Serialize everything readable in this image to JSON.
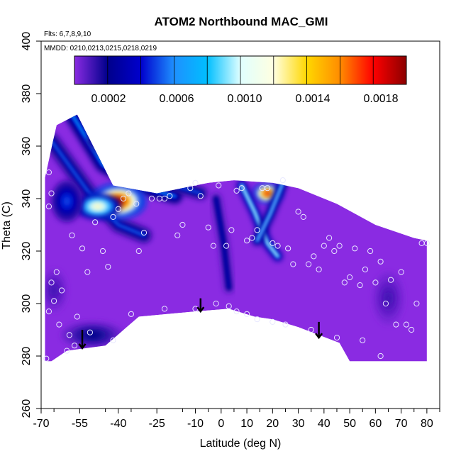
{
  "chart_data": {
    "type": "heatmap",
    "title": "ATOM2 Northbound MAC_GMI",
    "notes": [
      "Flts: 6,7,8,9,10",
      "MMDD: 0210,0213,0215,0218,0219"
    ],
    "xlabel": "Latitude (deg N)",
    "ylabel": "Theta (C)",
    "xlim": [
      -70,
      85
    ],
    "ylim": [
      260,
      400
    ],
    "x_ticks": [
      -70,
      -55,
      -40,
      -25,
      -10,
      0,
      10,
      20,
      30,
      40,
      50,
      60,
      70,
      80
    ],
    "y_ticks": [
      260,
      280,
      300,
      320,
      340,
      360,
      380,
      400
    ],
    "colorbar": {
      "range": [
        0,
        0.00195
      ],
      "tick_values": [
        0.0002,
        0.0006,
        0.001,
        0.0014,
        0.0018
      ],
      "tick_labels": [
        "0.0002",
        "0.0006",
        "0.0010",
        "0.0014",
        "0.0018"
      ],
      "colors": [
        "#8a2be2",
        "#00008b",
        "#0000cd",
        "#1e90ff",
        "#00bfff",
        "#e0ffff",
        "#ffffe0",
        "#ffd700",
        "#ff8c00",
        "#ff0000",
        "#8b0000"
      ]
    },
    "background_color": "#8a2be2",
    "domain_outline": [
      [
        -68.5,
        278
      ],
      [
        -68.5,
        348
      ],
      [
        -64,
        368
      ],
      [
        -56,
        372
      ],
      [
        -42,
        345
      ],
      [
        -25,
        342
      ],
      [
        -5,
        346
      ],
      [
        5,
        347
      ],
      [
        20,
        346
      ],
      [
        30,
        344
      ],
      [
        45,
        338
      ],
      [
        60,
        330
      ],
      [
        75,
        325
      ],
      [
        80,
        324
      ],
      [
        80,
        278
      ],
      [
        50,
        278
      ],
      [
        46,
        285
      ],
      [
        30,
        291
      ],
      [
        20,
        294
      ],
      [
        13,
        295
      ],
      [
        3,
        298
      ],
      [
        -10,
        297
      ],
      [
        -32,
        295
      ],
      [
        -45,
        284
      ],
      [
        -60,
        282
      ],
      [
        -66,
        278
      ],
      [
        -68.5,
        278
      ]
    ],
    "features": [
      {
        "kind": "ridge",
        "points": [
          [
            -66,
            362
          ],
          [
            -52,
            343
          ],
          [
            -40,
            330
          ],
          [
            -30,
            326
          ]
        ],
        "width": 6,
        "peak": 0.0003
      },
      {
        "kind": "ridge",
        "points": [
          [
            -58,
            372
          ],
          [
            -46,
            353
          ],
          [
            -32,
            345
          ],
          [
            -18,
            341
          ]
        ],
        "width": 6,
        "peak": 0.0004
      },
      {
        "kind": "ridge",
        "points": [
          [
            -50,
            362
          ],
          [
            -36,
            351
          ],
          [
            -22,
            346
          ],
          [
            -8,
            342
          ]
        ],
        "width": 5,
        "peak": 0.0003
      },
      {
        "kind": "blob",
        "x": -40,
        "y": 339,
        "rx": 11,
        "ry": 7,
        "value": 0.0019
      },
      {
        "kind": "blob",
        "x": -48,
        "y": 337,
        "rx": 9,
        "ry": 5,
        "value": 0.0012
      },
      {
        "kind": "blob",
        "x": -60,
        "y": 339,
        "rx": 6,
        "ry": 8,
        "value": 0.0005
      },
      {
        "kind": "blob",
        "x": 18,
        "y": 342,
        "rx": 6,
        "ry": 4,
        "value": 0.0018
      },
      {
        "kind": "ridge",
        "points": [
          [
            8,
            345
          ],
          [
            13,
            335
          ],
          [
            18,
            323
          ],
          [
            22,
            318
          ]
        ],
        "width": 4,
        "peak": 0.0006
      },
      {
        "kind": "ridge",
        "points": [
          [
            24,
            346
          ],
          [
            19,
            334
          ],
          [
            14,
            324
          ]
        ],
        "width": 4,
        "peak": 0.0005
      },
      {
        "kind": "ridge",
        "points": [
          [
            -2,
            340
          ],
          [
            1,
            323
          ],
          [
            3,
            306
          ]
        ],
        "width": 4,
        "peak": 0.0002
      },
      {
        "kind": "blob",
        "x": -50,
        "y": 288,
        "rx": 12,
        "ry": 5,
        "value": 0.0002
      },
      {
        "kind": "blob",
        "x": -65,
        "y": 305,
        "rx": 5,
        "ry": 8,
        "value": 0.0001
      },
      {
        "kind": "blob",
        "x": 65,
        "y": 302,
        "rx": 6,
        "ry": 10,
        "value": 0.0001
      }
    ],
    "sample_points": [
      [
        -67,
        350
      ],
      [
        -66,
        342
      ],
      [
        -67,
        337
      ],
      [
        -64,
        312
      ],
      [
        -66,
        308
      ],
      [
        -67,
        297
      ],
      [
        -65,
        301
      ],
      [
        -63,
        292
      ],
      [
        -62,
        305
      ],
      [
        -60,
        282
      ],
      [
        -59,
        288
      ],
      [
        -57,
        284
      ],
      [
        -56,
        295
      ],
      [
        -58,
        326
      ],
      [
        -54,
        321
      ],
      [
        -52,
        312
      ],
      [
        -51,
        289
      ],
      [
        -49,
        331
      ],
      [
        -46,
        320
      ],
      [
        -44,
        314
      ],
      [
        -42,
        286
      ],
      [
        -42,
        333
      ],
      [
        -40,
        336
      ],
      [
        -38,
        340
      ],
      [
        -36,
        342
      ],
      [
        -33,
        338
      ],
      [
        -32,
        320
      ],
      [
        -30,
        327
      ],
      [
        -27,
        340
      ],
      [
        -24,
        340
      ],
      [
        -22,
        340
      ],
      [
        -20,
        341
      ],
      [
        -17,
        326
      ],
      [
        -15,
        330
      ],
      [
        -12,
        344
      ],
      [
        -10,
        346
      ],
      [
        -8,
        341
      ],
      [
        -5,
        329
      ],
      [
        -3,
        322
      ],
      [
        -1,
        345
      ],
      [
        2,
        322
      ],
      [
        4,
        328
      ],
      [
        6,
        343
      ],
      [
        8,
        344
      ],
      [
        10,
        324
      ],
      [
        12,
        325
      ],
      [
        14,
        328
      ],
      [
        16,
        344
      ],
      [
        18,
        344
      ],
      [
        20,
        323
      ],
      [
        22,
        322
      ],
      [
        24,
        347
      ],
      [
        26,
        321
      ],
      [
        28,
        315
      ],
      [
        30,
        335
      ],
      [
        32,
        333
      ],
      [
        34,
        315
      ],
      [
        36,
        318
      ],
      [
        38,
        313
      ],
      [
        40,
        322
      ],
      [
        42,
        325
      ],
      [
        44,
        320
      ],
      [
        46,
        322
      ],
      [
        48,
        308
      ],
      [
        50,
        310
      ],
      [
        52,
        321
      ],
      [
        54,
        307
      ],
      [
        56,
        313
      ],
      [
        58,
        320
      ],
      [
        60,
        308
      ],
      [
        62,
        316
      ],
      [
        64,
        300
      ],
      [
        66,
        309
      ],
      [
        68,
        292
      ],
      [
        70,
        312
      ],
      [
        72,
        292
      ],
      [
        74,
        290
      ],
      [
        76,
        300
      ],
      [
        78,
        323
      ],
      [
        80,
        323
      ],
      [
        -68,
        279
      ],
      [
        -10,
        298
      ],
      [
        -2,
        300
      ],
      [
        3,
        299
      ],
      [
        6,
        297
      ],
      [
        10,
        296
      ],
      [
        14,
        294
      ],
      [
        20,
        293
      ],
      [
        25,
        292
      ],
      [
        35,
        290
      ],
      [
        45,
        287
      ],
      [
        55,
        286
      ],
      [
        62,
        280
      ],
      [
        -35,
        296
      ],
      [
        -22,
        298
      ]
    ],
    "arrows": [
      {
        "x": -54,
        "y_top": 290,
        "y_bottom": 283
      },
      {
        "x": -8,
        "y_top": 302,
        "y_bottom": 297
      },
      {
        "x": 38,
        "y_top": 293,
        "y_bottom": 287
      }
    ]
  }
}
